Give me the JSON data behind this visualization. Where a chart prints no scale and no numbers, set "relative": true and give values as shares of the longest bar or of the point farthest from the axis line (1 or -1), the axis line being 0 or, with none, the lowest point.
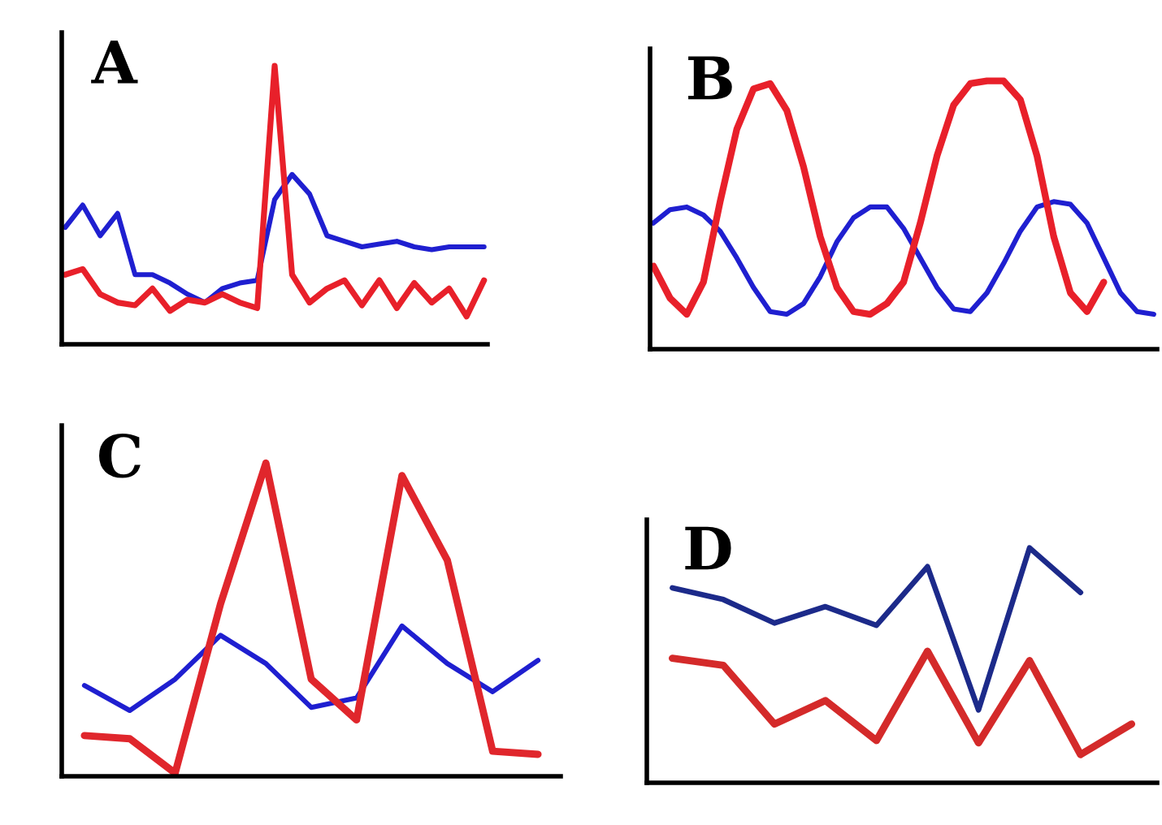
{
  "chart_data": [
    {
      "type": "line",
      "title": "A",
      "relative": true,
      "grid": false,
      "legend": false,
      "categories": [
        null,
        null,
        null,
        null,
        null,
        null,
        null,
        null,
        null,
        null,
        null,
        null,
        null,
        null,
        null,
        null,
        null,
        null,
        null,
        null,
        null,
        null,
        null,
        null,
        null
      ],
      "series": [
        {
          "color": "#1f1fd0",
          "values": [
            0.42,
            0.5,
            0.39,
            0.47,
            0.25,
            0.25,
            0.22,
            0.18,
            0.15,
            0.2,
            0.22,
            0.23,
            0.52,
            0.61,
            0.54,
            0.39,
            0.37,
            0.35,
            0.36,
            0.37,
            0.35,
            0.34,
            0.35,
            0.35,
            0.35
          ]
        },
        {
          "color": "#e8202a",
          "values": [
            0.25,
            0.27,
            0.18,
            0.15,
            0.14,
            0.2,
            0.12,
            0.16,
            0.15,
            0.18,
            0.15,
            0.13,
            1,
            0.25,
            0.15,
            0.2,
            0.23,
            0.14,
            0.23,
            0.13,
            0.22,
            0.15,
            0.2,
            0.1,
            0.23
          ]
        }
      ]
    },
    {
      "type": "line",
      "title": "B",
      "relative": true,
      "grid": false,
      "legend": false,
      "categories": [
        null,
        null,
        null,
        null,
        null,
        null,
        null,
        null,
        null,
        null,
        null,
        null,
        null,
        null,
        null,
        null,
        null,
        null,
        null,
        null,
        null,
        null,
        null,
        null,
        null,
        null,
        null,
        null,
        null,
        null,
        null
      ],
      "series": [
        {
          "color": "#1f1fd0",
          "values": [
            0.47,
            0.52,
            0.53,
            0.5,
            0.44,
            0.34,
            0.23,
            0.14,
            0.13,
            0.17,
            0.27,
            0.4,
            0.49,
            0.53,
            0.53,
            0.45,
            0.34,
            0.23,
            0.15,
            0.14,
            0.21,
            0.32,
            0.44,
            0.53,
            0.55,
            0.54,
            0.47,
            0.34,
            0.21,
            0.14,
            0.13
          ]
        },
        {
          "color": "#e8202a",
          "values": [
            0.31,
            0.19,
            0.13,
            0.25,
            0.55,
            0.82,
            0.97,
            0.99,
            0.89,
            0.68,
            0.42,
            0.23,
            0.14,
            0.13,
            0.17,
            0.25,
            0.47,
            0.72,
            0.91,
            0.99,
            1,
            1,
            0.93,
            0.72,
            0.42,
            0.21,
            0.14,
            0.25,
            null,
            null,
            null
          ]
        }
      ]
    },
    {
      "type": "line",
      "title": "C",
      "relative": true,
      "grid": false,
      "legend": false,
      "categories": [
        null,
        null,
        null,
        null,
        null,
        null,
        null,
        null,
        null,
        null,
        null
      ],
      "series": [
        {
          "color": "#1f1fd0",
          "values": [
            0.29,
            0.21,
            0.31,
            0.45,
            0.36,
            0.22,
            0.25,
            0.48,
            0.36,
            0.27,
            0.37
          ]
        },
        {
          "color": "#e0262c",
          "values": [
            0.13,
            0.12,
            0.01,
            0.55,
            1,
            0.31,
            0.18,
            0.96,
            0.69,
            0.08,
            0.07
          ]
        }
      ]
    },
    {
      "type": "line",
      "title": "D",
      "relative": true,
      "grid": false,
      "legend": false,
      "categories": [
        null,
        null,
        null,
        null,
        null,
        null,
        null,
        null,
        null,
        null
      ],
      "series": [
        {
          "color": "#1c2a8a",
          "values": [
            0.83,
            0.78,
            0.68,
            0.75,
            0.67,
            0.92,
            0.31,
            1,
            0.81,
            null
          ]
        },
        {
          "color": "#d42a2a",
          "values": [
            0.53,
            0.5,
            0.25,
            0.35,
            0.18,
            0.56,
            0.17,
            0.52,
            0.12,
            0.25
          ]
        }
      ]
    }
  ]
}
